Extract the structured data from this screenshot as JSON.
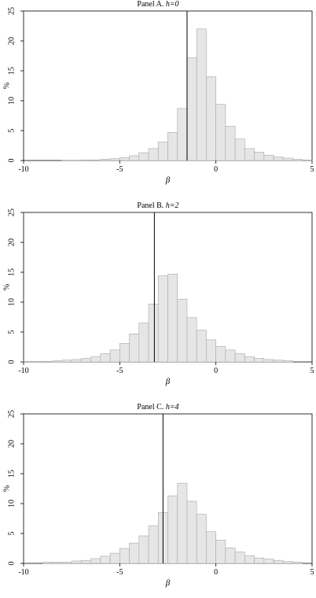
{
  "chart_data": [
    {
      "type": "bar",
      "title": {
        "prefix": "Panel A. ",
        "var": "h",
        "value": "=0"
      },
      "xlabel": "β",
      "ylabel": "%",
      "xlim": [
        -10,
        5
      ],
      "ylim": [
        0,
        25
      ],
      "xticks": [
        "-10",
        "-5",
        "0",
        "5"
      ],
      "yticks": [
        "0",
        "5",
        "10",
        "15",
        "20",
        "25"
      ],
      "bin_width": 0.5,
      "reference_line": -1.5,
      "bins": [
        {
          "x": -7.5,
          "value": 0.05
        },
        {
          "x": -7.0,
          "value": 0.05
        },
        {
          "x": -6.5,
          "value": 0.1
        },
        {
          "x": -6.0,
          "value": 0.1
        },
        {
          "x": -5.5,
          "value": 0.2
        },
        {
          "x": -5.0,
          "value": 0.3
        },
        {
          "x": -4.5,
          "value": 0.5
        },
        {
          "x": -4.0,
          "value": 0.8
        },
        {
          "x": -3.5,
          "value": 1.3
        },
        {
          "x": -3.0,
          "value": 2.0
        },
        {
          "x": -2.5,
          "value": 3.1
        },
        {
          "x": -2.0,
          "value": 4.7
        },
        {
          "x": -1.5,
          "value": 8.7
        },
        {
          "x": -1.0,
          "value": 17.2
        },
        {
          "x": -0.5,
          "value": 22.0
        },
        {
          "x": 0.0,
          "value": 14.0
        },
        {
          "x": 0.5,
          "value": 9.4
        },
        {
          "x": 1.0,
          "value": 5.7
        },
        {
          "x": 1.5,
          "value": 3.6
        },
        {
          "x": 2.0,
          "value": 2.0
        },
        {
          "x": 2.5,
          "value": 1.4
        },
        {
          "x": 3.0,
          "value": 0.9
        },
        {
          "x": 3.5,
          "value": 0.6
        },
        {
          "x": 4.0,
          "value": 0.4
        },
        {
          "x": 4.5,
          "value": 0.2
        },
        {
          "x": 5.0,
          "value": 0.1
        }
      ]
    },
    {
      "type": "bar",
      "title": {
        "prefix": "Panel B. ",
        "var": "h",
        "value": "=2"
      },
      "xlabel": "β",
      "ylabel": "%",
      "xlim": [
        -10,
        5
      ],
      "ylim": [
        0,
        25
      ],
      "xticks": [
        "-10",
        "-5",
        "0",
        "5"
      ],
      "yticks": [
        "0",
        "5",
        "10",
        "15",
        "20",
        "25"
      ],
      "bin_width": 0.5,
      "reference_line": -3.2,
      "bins": [
        {
          "x": -9.5,
          "value": 0.1
        },
        {
          "x": -9.0,
          "value": 0.1
        },
        {
          "x": -8.5,
          "value": 0.1
        },
        {
          "x": -8.0,
          "value": 0.2
        },
        {
          "x": -7.5,
          "value": 0.3
        },
        {
          "x": -7.0,
          "value": 0.4
        },
        {
          "x": -6.5,
          "value": 0.6
        },
        {
          "x": -6.0,
          "value": 0.9
        },
        {
          "x": -5.5,
          "value": 1.4
        },
        {
          "x": -5.0,
          "value": 2.0
        },
        {
          "x": -4.5,
          "value": 3.1
        },
        {
          "x": -4.0,
          "value": 4.7
        },
        {
          "x": -3.5,
          "value": 6.5
        },
        {
          "x": -3.0,
          "value": 9.7
        },
        {
          "x": -2.5,
          "value": 14.4
        },
        {
          "x": -2.0,
          "value": 14.7
        },
        {
          "x": -1.5,
          "value": 10.5
        },
        {
          "x": -1.0,
          "value": 7.4
        },
        {
          "x": -0.5,
          "value": 5.3
        },
        {
          "x": 0.0,
          "value": 3.7
        },
        {
          "x": 0.5,
          "value": 2.6
        },
        {
          "x": 1.0,
          "value": 2.0
        },
        {
          "x": 1.5,
          "value": 1.4
        },
        {
          "x": 2.0,
          "value": 0.9
        },
        {
          "x": 2.5,
          "value": 0.6
        },
        {
          "x": 3.0,
          "value": 0.4
        },
        {
          "x": 3.5,
          "value": 0.3
        },
        {
          "x": 4.0,
          "value": 0.2
        }
      ]
    },
    {
      "type": "bar",
      "title": {
        "prefix": "Panel C. ",
        "var": "h",
        "value": "=4"
      },
      "xlabel": "β",
      "ylabel": "%",
      "xlim": [
        -10,
        5
      ],
      "ylim": [
        0,
        25
      ],
      "xticks": [
        "-10",
        "-5",
        "0",
        "5"
      ],
      "yticks": [
        "0",
        "5",
        "10",
        "15",
        "20",
        "25"
      ],
      "bin_width": 0.5,
      "reference_line": -2.75,
      "bins": [
        {
          "x": -8.5,
          "value": 0.2
        },
        {
          "x": -8.0,
          "value": 0.2
        },
        {
          "x": -7.5,
          "value": 0.2
        },
        {
          "x": -7.0,
          "value": 0.4
        },
        {
          "x": -6.5,
          "value": 0.5
        },
        {
          "x": -6.0,
          "value": 0.8
        },
        {
          "x": -5.5,
          "value": 1.2
        },
        {
          "x": -5.0,
          "value": 1.7
        },
        {
          "x": -4.5,
          "value": 2.5
        },
        {
          "x": -4.0,
          "value": 3.4
        },
        {
          "x": -3.5,
          "value": 4.6
        },
        {
          "x": -3.0,
          "value": 6.3
        },
        {
          "x": -2.5,
          "value": 8.5
        },
        {
          "x": -2.0,
          "value": 11.3
        },
        {
          "x": -1.5,
          "value": 13.4
        },
        {
          "x": -1.0,
          "value": 10.4
        },
        {
          "x": -0.5,
          "value": 8.2
        },
        {
          "x": 0.0,
          "value": 5.3
        },
        {
          "x": 0.5,
          "value": 3.9
        },
        {
          "x": 1.0,
          "value": 2.6
        },
        {
          "x": 1.5,
          "value": 1.9
        },
        {
          "x": 2.0,
          "value": 1.3
        },
        {
          "x": 2.5,
          "value": 0.9
        },
        {
          "x": 3.0,
          "value": 0.7
        },
        {
          "x": 3.5,
          "value": 0.5
        },
        {
          "x": 4.0,
          "value": 0.3
        },
        {
          "x": 4.5,
          "value": 0.2
        }
      ]
    }
  ]
}
